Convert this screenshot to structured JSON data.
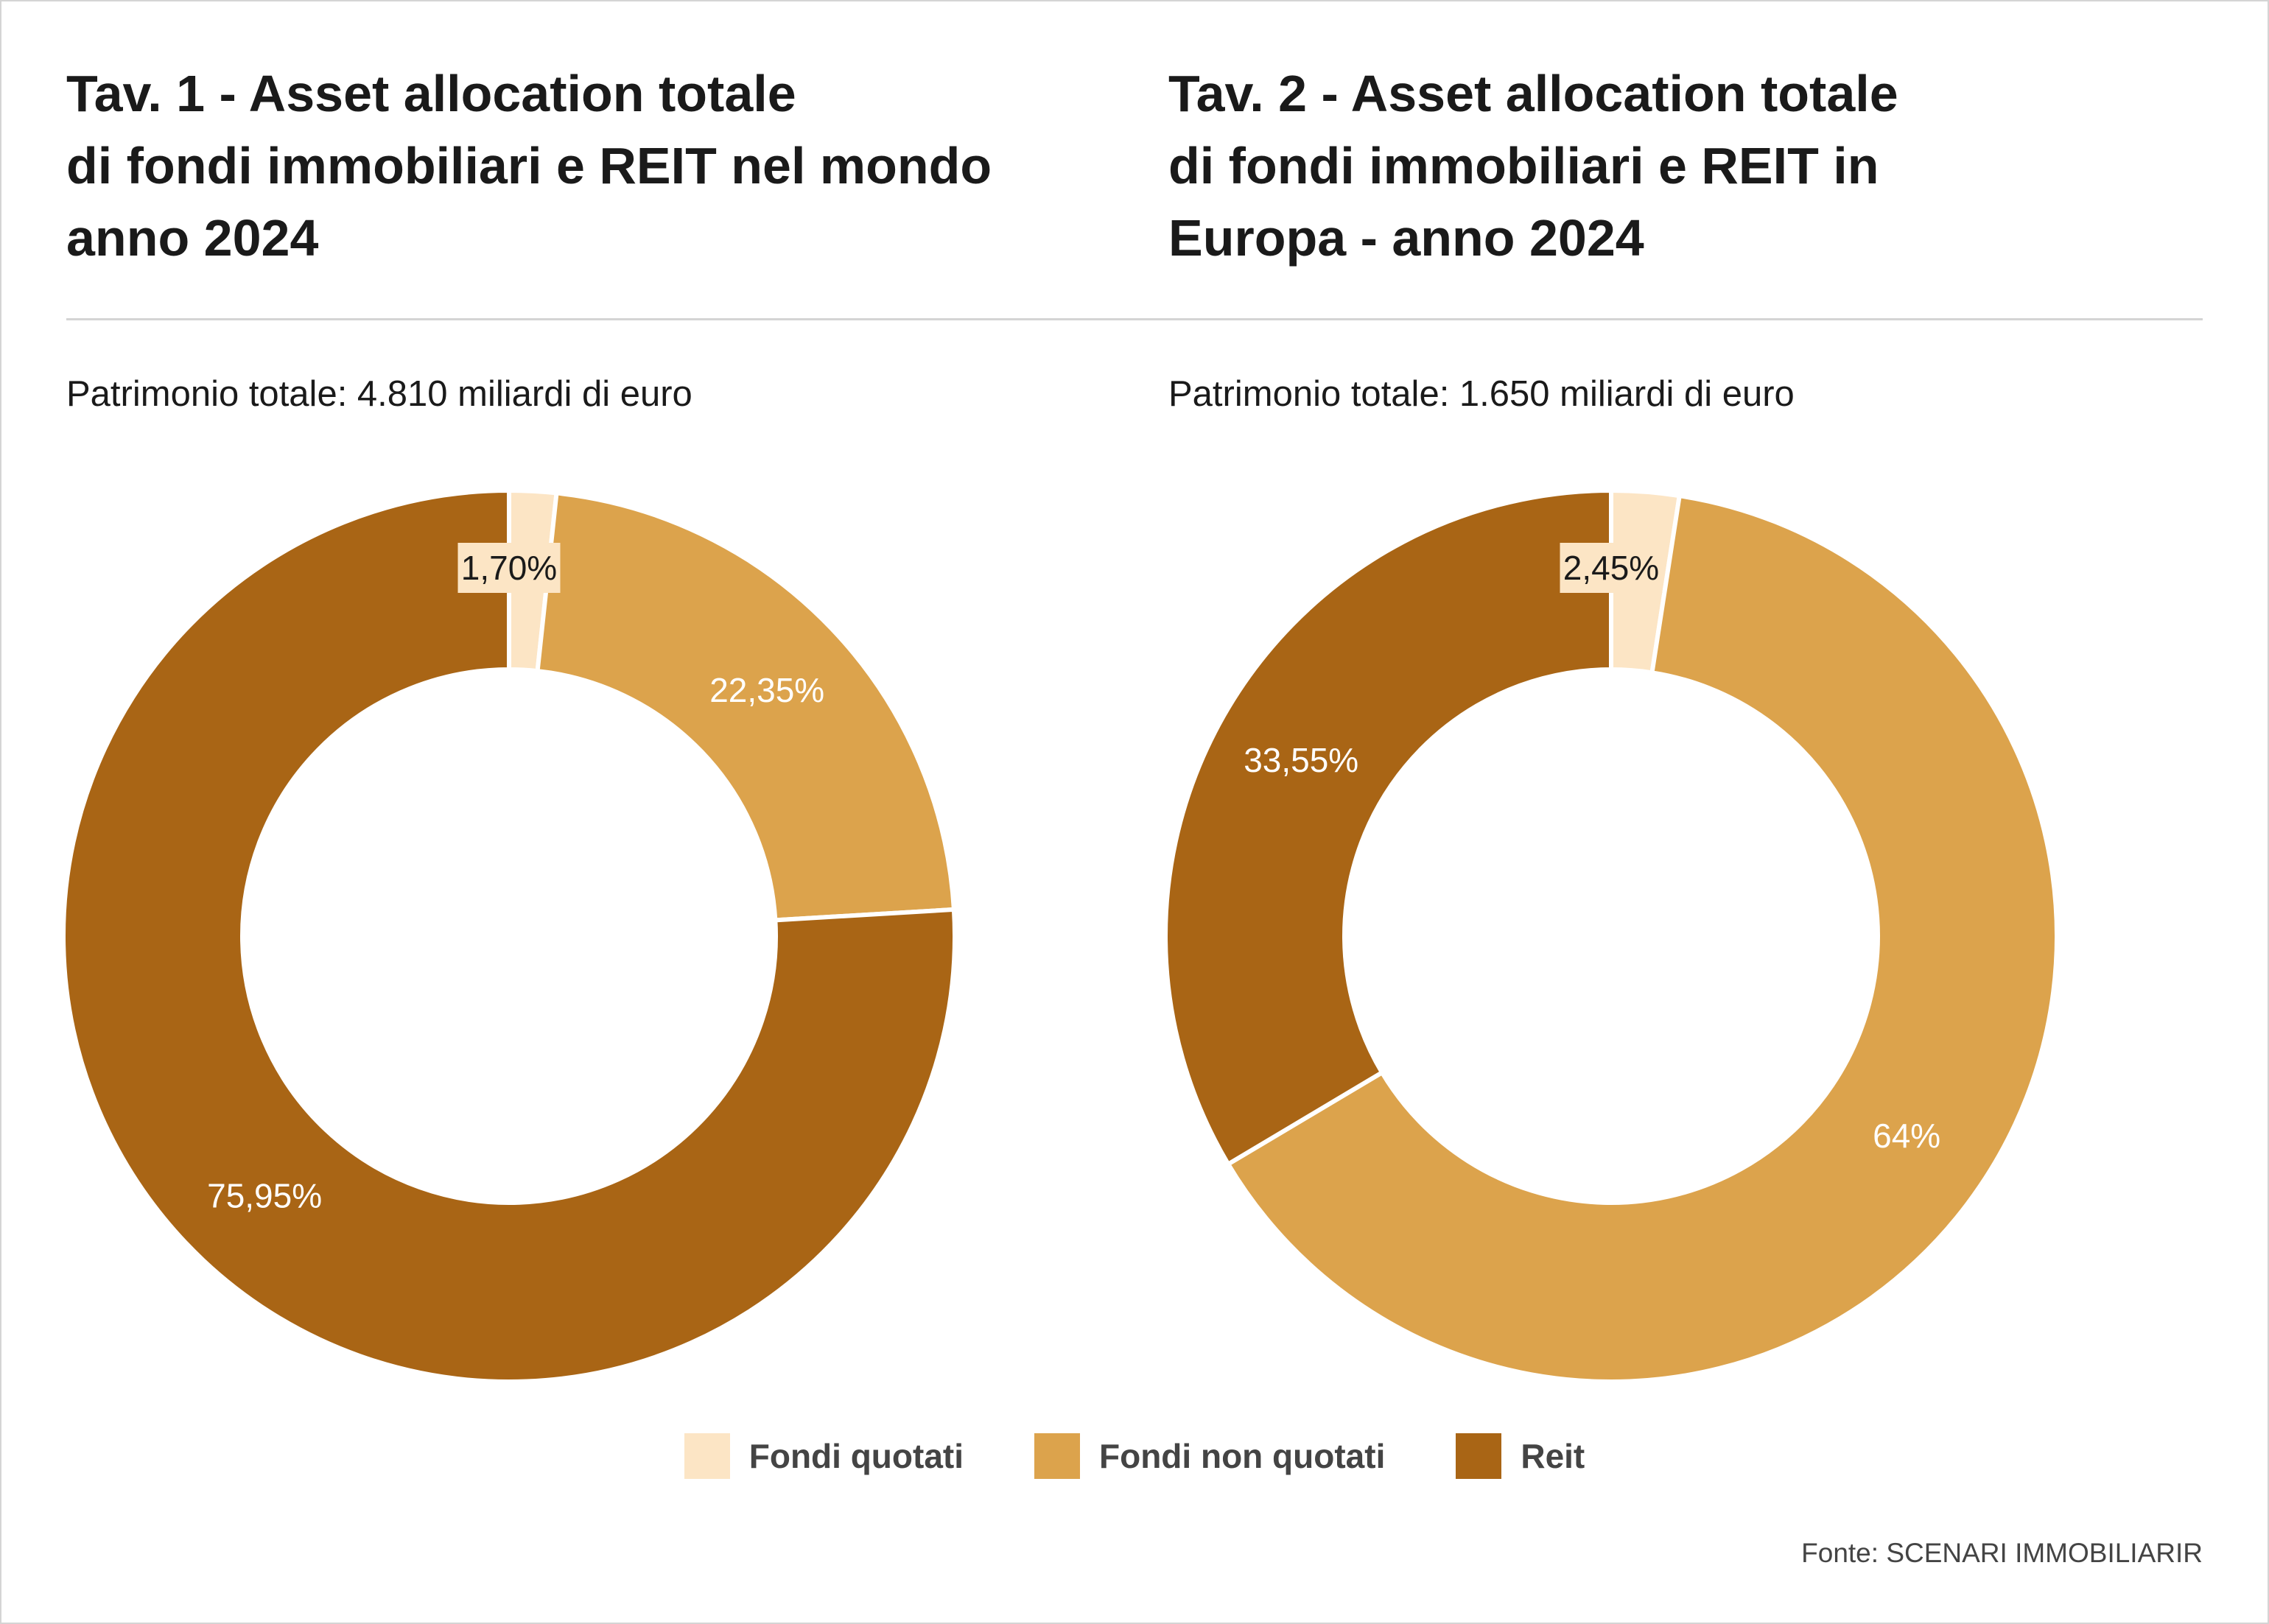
{
  "colors": {
    "fondi_quotati": "#fce5c5",
    "fondi_non_quotati": "#dca34c",
    "reit": "#a96515",
    "label_light": "#ffffff",
    "label_dark": "#1a1a1a",
    "label_box": "#fce5c5"
  },
  "charts": [
    {
      "title_lines": [
        "Tav. 1 - Asset allocation totale",
        "di fondi immobiliari e REIT nel mondo",
        "anno 2024"
      ],
      "subtitle": "Patrimonio totale: 4.810 miliardi di euro"
    },
    {
      "title_lines": [
        "Tav. 2 - Asset allocation totale",
        "di fondi immobiliari e REIT in",
        "Europa - anno 2024"
      ],
      "subtitle": "Patrimonio totale: 1.650 miliardi di euro"
    }
  ],
  "chart_data": [
    {
      "type": "pie",
      "donut": true,
      "title": "Tav. 1 - Asset allocation totale di fondi immobiliari e REIT nel mondo anno 2024",
      "subtitle": "Patrimonio totale: 4.810 miliardi di euro",
      "categories": [
        "Fondi quotati",
        "Fondi non quotati",
        "Reit"
      ],
      "values": [
        1.7,
        22.35,
        75.95
      ],
      "labels": [
        "1,70%",
        "22,35%",
        "75,95%"
      ],
      "legend": "bottom"
    },
    {
      "type": "pie",
      "donut": true,
      "title": "Tav. 2 - Asset allocation totale di fondi immobiliari e REIT in Europa - anno 2024",
      "subtitle": "Patrimonio totale: 1.650 miliardi di euro",
      "categories": [
        "Fondi quotati",
        "Fondi non quotati",
        "Reit"
      ],
      "values": [
        2.45,
        64,
        33.55
      ],
      "labels": [
        "2,45%",
        "64%",
        "33,55%"
      ],
      "legend": "bottom"
    }
  ],
  "legend": [
    {
      "label": "Fondi quotati",
      "color": "#fce5c5"
    },
    {
      "label": "Fondi non quotati",
      "color": "#dca34c"
    },
    {
      "label": "Reit",
      "color": "#a96515"
    }
  ],
  "source": "Fonte: SCENARI IMMOBILIARIR"
}
